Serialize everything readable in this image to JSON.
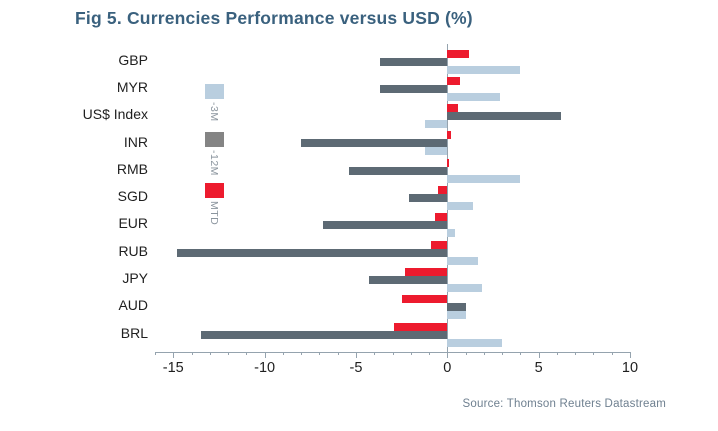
{
  "title": "Fig 5. Currencies Performance versus USD (%)",
  "source": "Source: Thomson Reuters Datastream",
  "colors": {
    "title": "#3a617e",
    "bar_mtd": "#ed1b2e",
    "bar_12m": "#5d6a74",
    "bar_3m": "#b9cedf",
    "legend_12m_swatch": "#848484",
    "axis": "#95a3ae",
    "tick_label": "#1f1f1f",
    "category_label": "#1f1f1f",
    "legend_label": "#8b959e",
    "source_text": "#6f8090"
  },
  "chart_data": {
    "type": "bar",
    "orientation": "horizontal",
    "title": "Fig 5. Currencies Performance versus USD (%)",
    "categories": [
      "GBP",
      "MYR",
      "US$ Index",
      "INR",
      "RMB",
      "SGD",
      "EUR",
      "RUB",
      "JPY",
      "AUD",
      "BRL"
    ],
    "series": [
      {
        "name": "MTD",
        "color_key": "bar_mtd",
        "values": [
          1.2,
          0.7,
          0.6,
          0.2,
          0.1,
          -0.5,
          -0.7,
          -0.9,
          -2.3,
          -2.5,
          -2.9
        ]
      },
      {
        "name": "-12M",
        "color_key": "bar_12m",
        "values": [
          -3.7,
          -3.7,
          6.2,
          -8.0,
          -5.4,
          -2.1,
          -6.8,
          -14.8,
          -4.3,
          1.0,
          -13.5
        ]
      },
      {
        "name": "-3M",
        "color_key": "bar_3m",
        "values": [
          4.0,
          2.9,
          -1.2,
          -1.2,
          4.0,
          1.4,
          0.4,
          1.7,
          1.9,
          1.0,
          3.0
        ]
      }
    ],
    "legend": [
      {
        "label": "-3M",
        "swatch_color_key": "bar_3m"
      },
      {
        "label": "-12M",
        "swatch_color_key": "legend_12m_swatch"
      },
      {
        "label": "MTD",
        "swatch_color_key": "bar_mtd"
      }
    ],
    "legend_position": "left-inside",
    "xlim": [
      -16,
      10
    ],
    "xticks": [
      -15,
      -10,
      -5,
      0,
      5,
      10
    ],
    "minor_tick_step": 1,
    "grid": false
  }
}
